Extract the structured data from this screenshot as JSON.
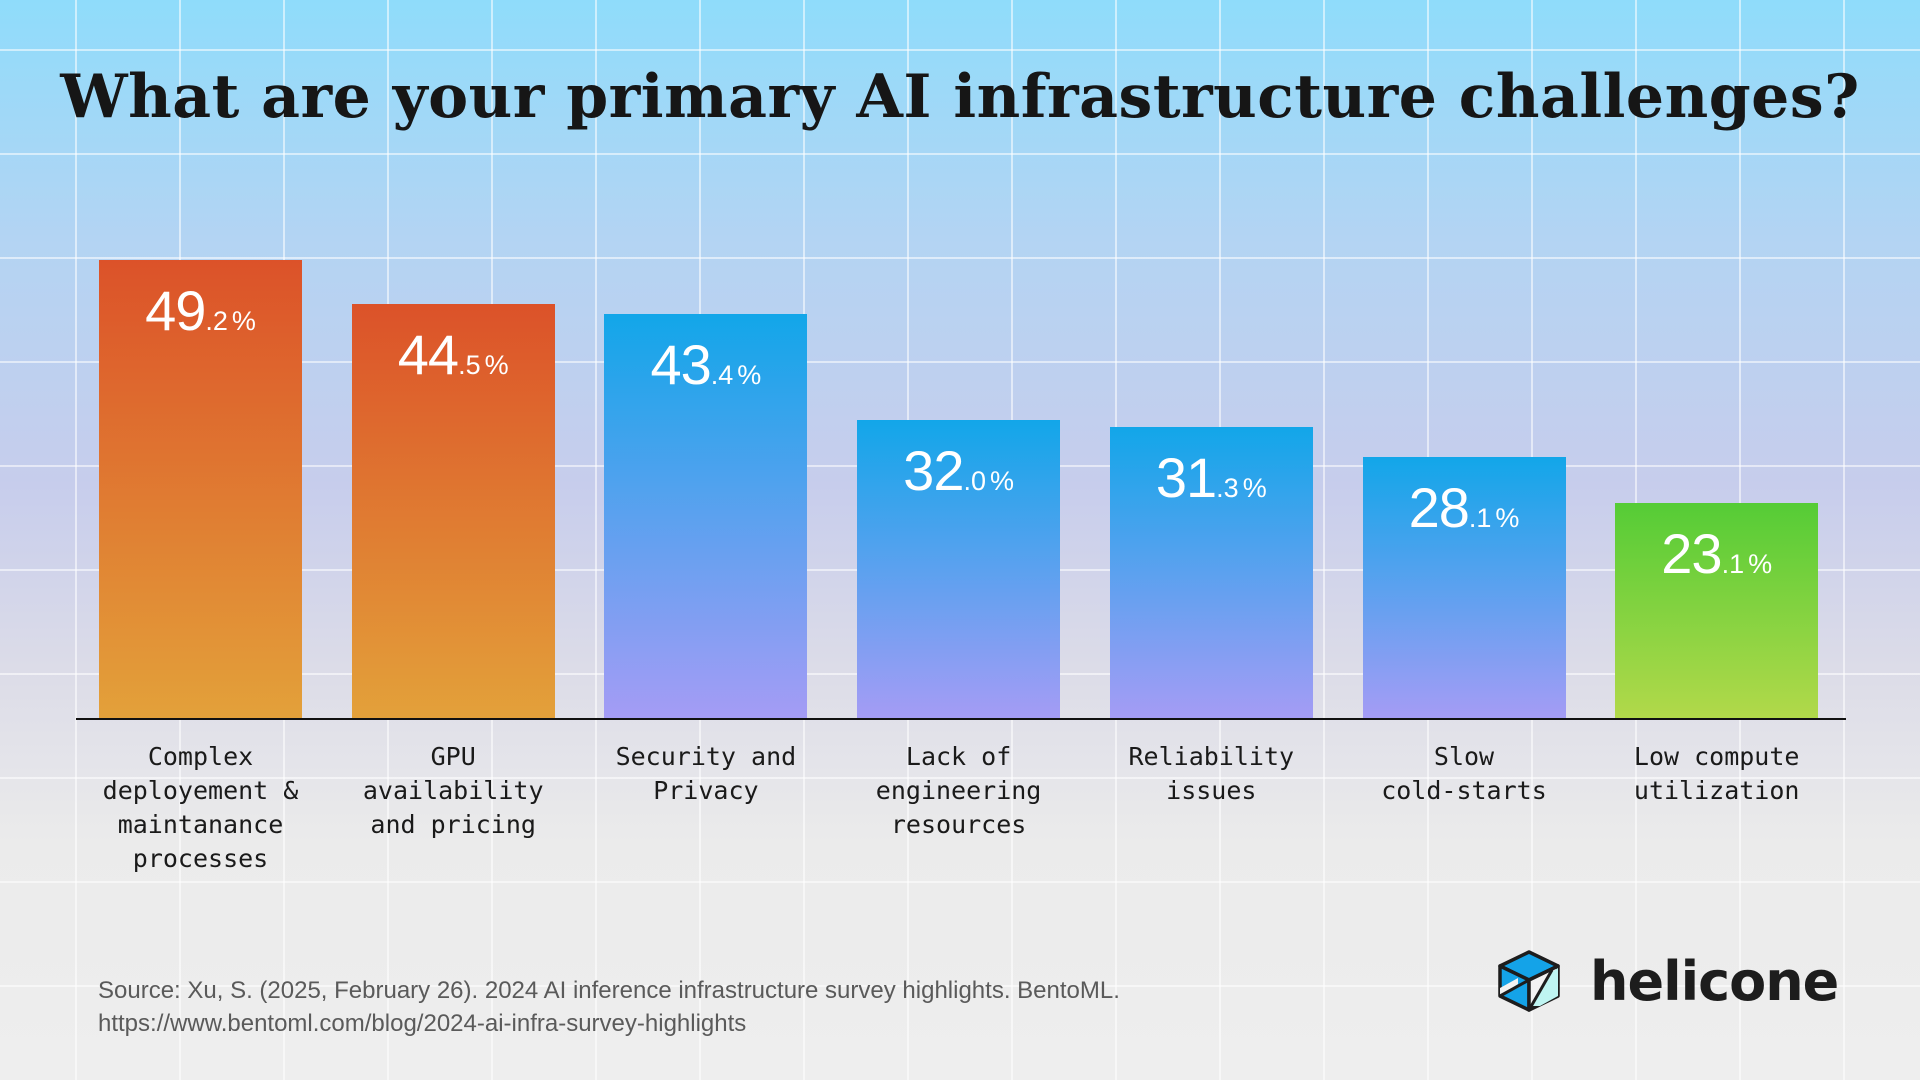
{
  "title": "What are your primary AI infrastructure challenges?",
  "chart_data": {
    "type": "bar",
    "title": "What are your primary AI infrastructure challenges?",
    "categories": [
      [
        "Complex",
        "deployement &",
        "maintanance",
        "processes"
      ],
      [
        "GPU",
        "availability",
        "and pricing"
      ],
      [
        "Security and",
        "Privacy"
      ],
      [
        "Lack of",
        "engineering",
        "resources"
      ],
      [
        "Reliability",
        "issues"
      ],
      [
        "Slow",
        "cold-starts"
      ],
      [
        "Low compute",
        "utilization"
      ]
    ],
    "values": [
      49.2,
      44.5,
      43.4,
      32.0,
      31.3,
      28.1,
      23.1
    ],
    "labels": [
      {
        "int": "49",
        "dec": ".2",
        "unit": "%"
      },
      {
        "int": "44",
        "dec": ".5",
        "unit": "%"
      },
      {
        "int": "43",
        "dec": ".4",
        "unit": "%"
      },
      {
        "int": "32",
        "dec": ".0",
        "unit": "%"
      },
      {
        "int": "31",
        "dec": ".3",
        "unit": "%"
      },
      {
        "int": "28",
        "dec": ".1",
        "unit": "%"
      },
      {
        "int": "23",
        "dec": ".1",
        "unit": "%"
      }
    ],
    "bar_colors": [
      [
        "#dc5229",
        "#e3a13a"
      ],
      [
        "#dc5229",
        "#e3a13a"
      ],
      [
        "#12a6e9",
        "#a59cf5"
      ],
      [
        "#12a6e9",
        "#a59cf5"
      ],
      [
        "#12a6e9",
        "#a59cf5"
      ],
      [
        "#12a6e9",
        "#a59cf5"
      ],
      [
        "#55cc36",
        "#b2d94a"
      ]
    ],
    "ylim": [
      0,
      50
    ],
    "xlabel": "",
    "ylabel": "",
    "grid": true
  },
  "source": {
    "line1": "Source: Xu, S. (2025, February 26). 2024 AI inference infrastructure survey highlights. BentoML.",
    "line2": "https://www.bentoml.com/blog/2024-ai-infra-survey-highlights"
  },
  "logo": {
    "text": "helicone",
    "icon": "helicone-cube-icon",
    "colors": [
      "#14a3e8",
      "#bff5f2",
      "#1d1d1d"
    ]
  }
}
